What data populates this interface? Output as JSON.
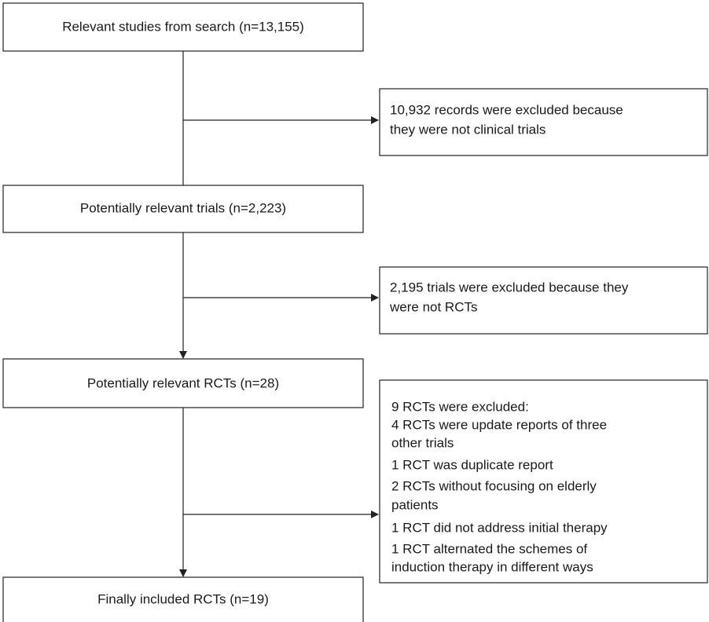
{
  "nodes": [
    {
      "label": "Relevant studies from search (n=13,155)"
    },
    {
      "label": "Potentially relevant trials (n=2,223)"
    },
    {
      "label": "Potentially relevant RCTs (n=28)"
    },
    {
      "label": "Finally included RCTs (n=19)"
    }
  ],
  "exclusions": [
    {
      "lines": [
        "10,932 records were excluded because",
        "they were not clinical trials"
      ]
    },
    {
      "lines": [
        "2,195 trials were excluded because they",
        "were not RCTs"
      ]
    },
    {
      "lines": [
        "9 RCTs were excluded:",
        "4 RCTs were update reports of three",
        "other trials",
        "1 RCT was duplicate report",
        "2 RCTs without focusing on elderly",
        "patients",
        "1 RCT did not address initial therapy",
        "1 RCT alternated the schemes of",
        "induction therapy in different ways"
      ]
    }
  ]
}
